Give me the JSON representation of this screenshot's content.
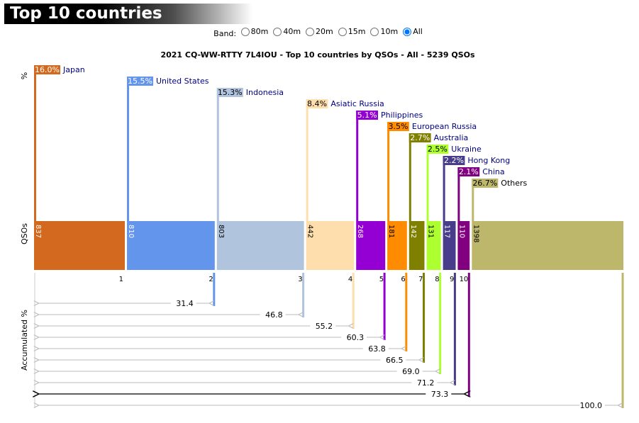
{
  "page": {
    "heading": "Top 10 countries",
    "band_label": "Band:",
    "bands": [
      {
        "label": "80m",
        "selected": false
      },
      {
        "label": "40m",
        "selected": false
      },
      {
        "label": "20m",
        "selected": false
      },
      {
        "label": "15m",
        "selected": false
      },
      {
        "label": "10m",
        "selected": false
      },
      {
        "label": "All",
        "selected": true
      }
    ]
  },
  "chart_data": {
    "type": "bar",
    "title": "2021 CQ-WW-RTTY 7L4IOU - Top 10 countries by QSOs - All - 5239 QSOs",
    "total": 5239,
    "axis_labels": {
      "percent": "%",
      "qsos": "QSOs",
      "accumulated": "Accumulated %"
    },
    "categories": [
      {
        "rank": "1",
        "name": "Japan",
        "qsos": 837,
        "pct": "16.0%",
        "cum": "",
        "color": "#D2691E"
      },
      {
        "rank": "2",
        "name": "United States",
        "qsos": 810,
        "pct": "15.5%",
        "cum": "31.4",
        "color": "#6495ED"
      },
      {
        "rank": "3",
        "name": "Indonesia",
        "qsos": 803,
        "pct": "15.3%",
        "cum": "46.8",
        "color": "#B0C4DE"
      },
      {
        "rank": "4",
        "name": "Asiatic Russia",
        "qsos": 442,
        "pct": "8.4%",
        "cum": "55.2",
        "color": "#FFDEAD"
      },
      {
        "rank": "5",
        "name": "Philippines",
        "qsos": 268,
        "pct": "5.1%",
        "cum": "60.3",
        "color": "#9400D3"
      },
      {
        "rank": "6",
        "name": "European Russia",
        "qsos": 181,
        "pct": "3.5%",
        "cum": "63.8",
        "color": "#FF8C00"
      },
      {
        "rank": "7",
        "name": "Australia",
        "qsos": 142,
        "pct": "2.7%",
        "cum": "66.5",
        "color": "#808000"
      },
      {
        "rank": "8",
        "name": "Ukraine",
        "qsos": 131,
        "pct": "2.5%",
        "cum": "69.0",
        "color": "#ADFF2F"
      },
      {
        "rank": "9",
        "name": "Hong Kong",
        "qsos": 117,
        "pct": "2.2%",
        "cum": "71.2",
        "color": "#483D8B"
      },
      {
        "rank": "10",
        "name": "China",
        "qsos": 110,
        "pct": "2.1%",
        "cum": "73.3",
        "color": "#800080"
      },
      {
        "rank": "",
        "name": "Others",
        "qsos": 1398,
        "pct": "26.7%",
        "cum": "100.0",
        "color": "#BDB76B"
      }
    ]
  }
}
